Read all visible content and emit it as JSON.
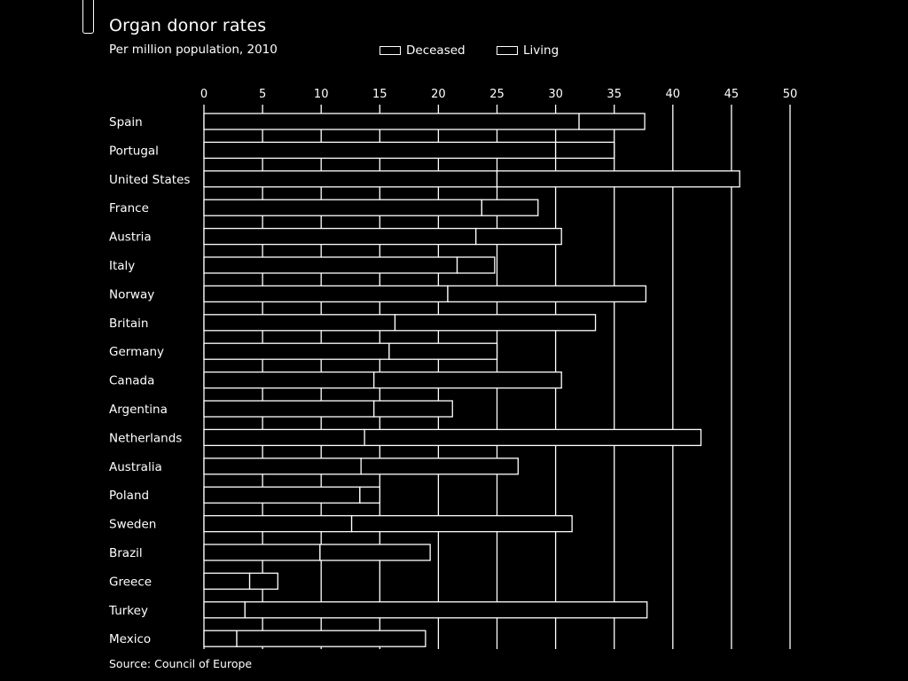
{
  "header": {
    "title": "Organ donor rates",
    "subtitle": "Per million population, 2010"
  },
  "legend": {
    "deceased": "Deceased",
    "living": "Living"
  },
  "footer": {
    "source": "Source: Council of Europe"
  },
  "colors": {
    "background": "#000000",
    "foreground": "#ffffff"
  },
  "chart_data": {
    "type": "bar",
    "orientation": "horizontal",
    "stacked": true,
    "title": "Organ donor rates",
    "subtitle": "Per million population, 2010",
    "xlim": [
      0,
      50
    ],
    "xticks": [
      0,
      5,
      10,
      15,
      20,
      25,
      30,
      35,
      40,
      45,
      50
    ],
    "grid": true,
    "legend_position": "top",
    "categories": [
      "Spain",
      "Portugal",
      "United States",
      "France",
      "Austria",
      "Italy",
      "Norway",
      "Britain",
      "Germany",
      "Canada",
      "Argentina",
      "Netherlands",
      "Australia",
      "Poland",
      "Sweden",
      "Brazil",
      "Greece",
      "Turkey",
      "Mexico"
    ],
    "series": [
      {
        "name": "Deceased",
        "values": [
          32.0,
          30.0,
          25.0,
          23.7,
          23.2,
          21.6,
          20.8,
          16.3,
          15.8,
          14.5,
          14.5,
          13.7,
          13.4,
          13.3,
          12.6,
          9.9,
          3.9,
          3.5,
          2.8
        ]
      },
      {
        "name": "Living",
        "values": [
          5.6,
          5.0,
          20.7,
          4.8,
          7.3,
          3.2,
          16.9,
          17.1,
          9.2,
          16.0,
          6.7,
          28.7,
          13.4,
          1.7,
          18.8,
          9.4,
          2.4,
          34.3,
          16.1
        ]
      }
    ]
  }
}
